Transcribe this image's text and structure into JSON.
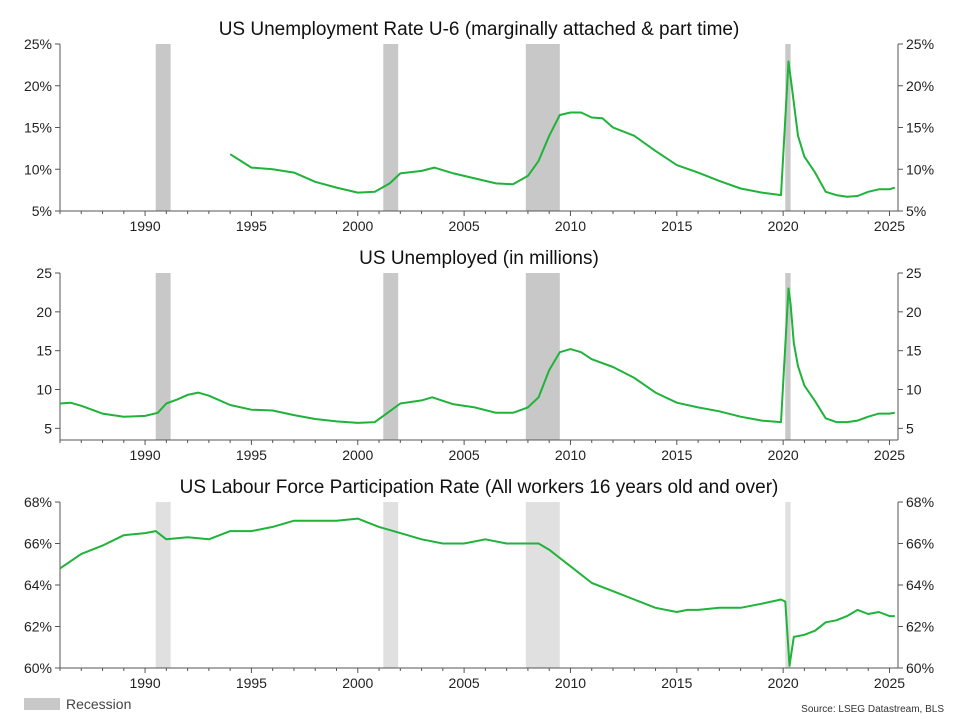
{
  "source": "Source: LSEG Datastream, BLS",
  "legend": {
    "recession_label": "Recession",
    "recession_color": "#c8c8c8"
  },
  "line_color": "#1fb33a",
  "chart_data": [
    {
      "type": "line",
      "title": "US Unemployment Rate U-6 (marginally attached & part time)",
      "x_range": [
        1986,
        2025.4
      ],
      "ylim": [
        5,
        25
      ],
      "y_ticks": [
        "5%",
        "10%",
        "15%",
        "20%",
        "25%"
      ],
      "x_ticks": [
        "1990",
        "1995",
        "2000",
        "2005",
        "2010",
        "2015",
        "2020",
        "2025"
      ],
      "recessions": [
        [
          1990.5,
          1991.2
        ],
        [
          2001.2,
          2001.9
        ],
        [
          2007.9,
          2009.5
        ],
        [
          2020.1,
          2020.35
        ]
      ],
      "series": [
        {
          "x": [
            1994.0,
            1994.5,
            1995.0,
            1996.0,
            1997.0,
            1998.0,
            1999.0,
            2000.0,
            2000.8,
            2001.5,
            2002.0,
            2003.0,
            2003.6,
            2004.5,
            2005.5,
            2006.5,
            2007.3,
            2008.0,
            2008.5,
            2009.0,
            2009.5,
            2010.0,
            2010.5,
            2011.0,
            2011.5,
            2012.0,
            2013.0,
            2014.0,
            2015.0,
            2016.0,
            2017.0,
            2018.0,
            2019.0,
            2019.9,
            2020.25,
            2020.35,
            2020.5,
            2020.7,
            2021.0,
            2021.5,
            2022.0,
            2022.5,
            2023.0,
            2023.5,
            2024.0,
            2024.5,
            2025.0,
            2025.25
          ],
          "y": [
            11.8,
            11.0,
            10.2,
            10.0,
            9.6,
            8.5,
            7.8,
            7.2,
            7.3,
            8.3,
            9.5,
            9.8,
            10.2,
            9.5,
            8.9,
            8.3,
            8.2,
            9.2,
            11.0,
            14.0,
            16.5,
            16.8,
            16.8,
            16.2,
            16.1,
            15.0,
            14.0,
            12.2,
            10.5,
            9.6,
            8.6,
            7.7,
            7.2,
            6.9,
            22.9,
            21.0,
            18.0,
            14.0,
            11.5,
            9.6,
            7.3,
            6.9,
            6.7,
            6.8,
            7.3,
            7.6,
            7.6,
            7.8
          ]
        }
      ]
    },
    {
      "type": "line",
      "title": "US Unemployed (in millions)",
      "x_range": [
        1986,
        2025.4
      ],
      "ylim": [
        3.5,
        25
      ],
      "y_ticks": [
        "5",
        "10",
        "15",
        "20",
        "25"
      ],
      "x_ticks": [
        "1990",
        "1995",
        "2000",
        "2005",
        "2010",
        "2015",
        "2020",
        "2025"
      ],
      "recessions": [
        [
          1990.5,
          1991.2
        ],
        [
          2001.2,
          2001.9
        ],
        [
          2007.9,
          2009.5
        ],
        [
          2020.1,
          2020.35
        ]
      ],
      "series": [
        {
          "x": [
            1986.0,
            1986.5,
            1987.0,
            1987.5,
            1988.0,
            1989.0,
            1990.0,
            1990.6,
            1991.0,
            1991.5,
            1992.0,
            1992.5,
            1993.0,
            1994.0,
            1995.0,
            1996.0,
            1997.0,
            1998.0,
            1999.0,
            2000.0,
            2000.8,
            2001.5,
            2002.0,
            2003.0,
            2003.5,
            2004.5,
            2005.5,
            2006.5,
            2007.3,
            2008.0,
            2008.5,
            2009.0,
            2009.5,
            2010.0,
            2010.5,
            2011.0,
            2012.0,
            2013.0,
            2014.0,
            2015.0,
            2016.0,
            2017.0,
            2018.0,
            2019.0,
            2019.9,
            2020.25,
            2020.35,
            2020.5,
            2020.7,
            2021.0,
            2021.5,
            2022.0,
            2022.5,
            2023.0,
            2023.5,
            2024.0,
            2024.5,
            2025.0,
            2025.25
          ],
          "y": [
            8.2,
            8.3,
            7.9,
            7.4,
            6.9,
            6.5,
            6.6,
            7.0,
            8.2,
            8.7,
            9.3,
            9.6,
            9.2,
            8.0,
            7.4,
            7.3,
            6.7,
            6.2,
            5.9,
            5.7,
            5.8,
            7.2,
            8.2,
            8.6,
            9.0,
            8.1,
            7.7,
            7.0,
            7.0,
            7.7,
            9.0,
            12.5,
            14.8,
            15.2,
            14.8,
            13.9,
            12.9,
            11.5,
            9.6,
            8.3,
            7.7,
            7.2,
            6.5,
            6.0,
            5.8,
            23.0,
            21.0,
            16.0,
            13.0,
            10.5,
            8.5,
            6.3,
            5.8,
            5.8,
            6.0,
            6.5,
            6.9,
            6.9,
            7.0
          ]
        }
      ]
    },
    {
      "type": "line",
      "title": "US Labour Force Participation Rate (All workers 16 years old and over)",
      "x_range": [
        1986,
        2025.4
      ],
      "ylim": [
        60,
        68
      ],
      "y_ticks": [
        "60%",
        "62%",
        "64%",
        "66%",
        "68%"
      ],
      "x_ticks": [
        "1990",
        "1995",
        "2000",
        "2005",
        "2010",
        "2015",
        "2020",
        "2025"
      ],
      "recessions": [
        [
          1990.5,
          1991.2
        ],
        [
          2001.2,
          2001.9
        ],
        [
          2007.9,
          2009.5
        ],
        [
          2020.1,
          2020.35
        ]
      ],
      "recession_color": "#e0e0e0",
      "series": [
        {
          "x": [
            1986.0,
            1987.0,
            1988.0,
            1989.0,
            1990.0,
            1990.5,
            1991.0,
            1992.0,
            1993.0,
            1994.0,
            1995.0,
            1996.0,
            1997.0,
            1998.0,
            1999.0,
            2000.0,
            2000.5,
            2001.0,
            2002.0,
            2003.0,
            2004.0,
            2005.0,
            2006.0,
            2007.0,
            2008.0,
            2008.5,
            2009.0,
            2009.5,
            2010.0,
            2011.0,
            2012.0,
            2013.0,
            2014.0,
            2015.0,
            2015.5,
            2016.0,
            2017.0,
            2018.0,
            2019.0,
            2019.9,
            2020.1,
            2020.3,
            2020.5,
            2021.0,
            2021.5,
            2022.0,
            2022.5,
            2023.0,
            2023.5,
            2024.0,
            2024.5,
            2025.0,
            2025.25
          ],
          "y": [
            64.8,
            65.5,
            65.9,
            66.4,
            66.5,
            66.6,
            66.2,
            66.3,
            66.2,
            66.6,
            66.6,
            66.8,
            67.1,
            67.1,
            67.1,
            67.2,
            67.0,
            66.8,
            66.5,
            66.2,
            66.0,
            66.0,
            66.2,
            66.0,
            66.0,
            66.0,
            65.7,
            65.3,
            64.9,
            64.1,
            63.7,
            63.3,
            62.9,
            62.7,
            62.8,
            62.8,
            62.9,
            62.9,
            63.1,
            63.3,
            63.2,
            60.1,
            61.5,
            61.6,
            61.8,
            62.2,
            62.3,
            62.5,
            62.8,
            62.6,
            62.7,
            62.5,
            62.5
          ]
        }
      ]
    }
  ]
}
